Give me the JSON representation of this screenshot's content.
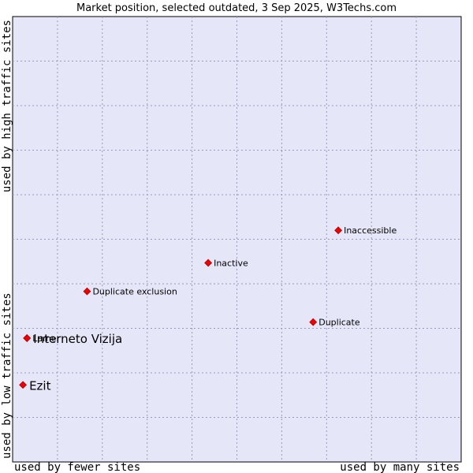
{
  "chart_data": {
    "type": "scatter",
    "title": "Market position, selected outdated, 3 Sep 2025, W3Techs.com",
    "xlabel_low": "used by fewer sites",
    "xlabel_high": "used by many sites",
    "ylabel_low": "used by low traffic sites",
    "ylabel_high": "used by high traffic sites",
    "xlim": [
      0,
      100
    ],
    "ylim": [
      0,
      100
    ],
    "grid": true,
    "marker_color": "#ee0000",
    "background_color": "#e6e6f9",
    "points": [
      {
        "name": "Inaccessible",
        "x": 72.6,
        "y": 52.0,
        "emphasis": false
      },
      {
        "name": "Inactive",
        "x": 43.6,
        "y": 44.7,
        "emphasis": false
      },
      {
        "name": "Duplicate exclusion",
        "x": 16.6,
        "y": 38.3,
        "emphasis": false
      },
      {
        "name": "Duplicate",
        "x": 67.0,
        "y": 31.4,
        "emphasis": false
      },
      {
        "name": "Lamer",
        "x": 3.2,
        "y": 27.8,
        "emphasis": false
      },
      {
        "name": "Interneto Vizija",
        "x": 3.2,
        "y": 27.8,
        "emphasis": true
      },
      {
        "name": "Ezit",
        "x": 2.3,
        "y": 17.3,
        "emphasis": true
      }
    ]
  }
}
